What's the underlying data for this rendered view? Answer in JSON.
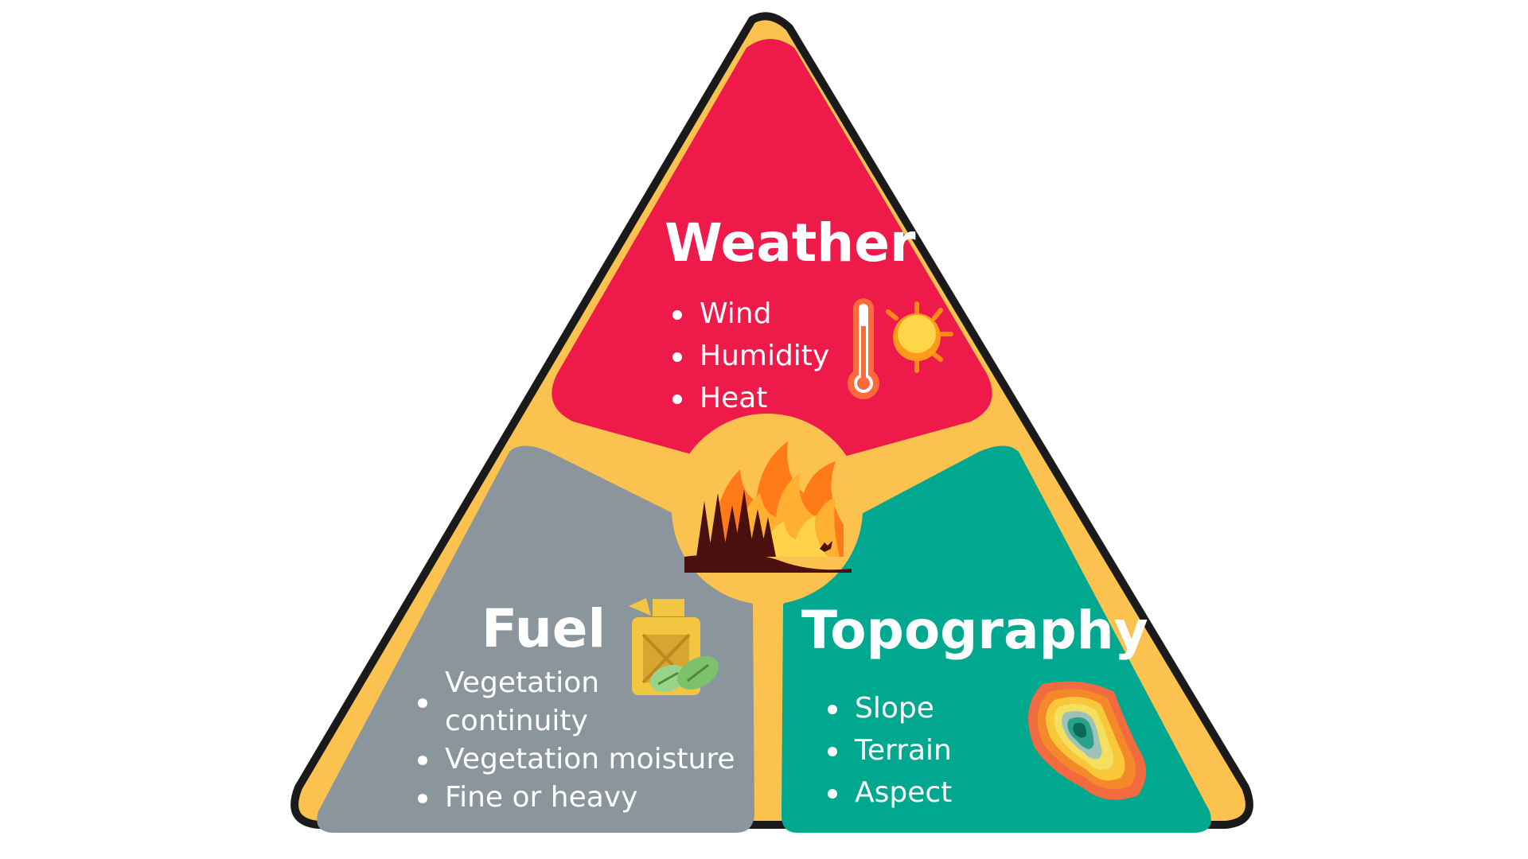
{
  "diagram": {
    "colors": {
      "outline": "#1a1a1a",
      "frame": "#fcc250",
      "weather": "#ee1a4a",
      "fuel": "#8a969c",
      "topography": "#00a890",
      "text": "#ffffff"
    },
    "sections": {
      "weather": {
        "title": "Weather",
        "items": [
          "Wind",
          "Humidity",
          "Heat"
        ],
        "icon": "thermometer-sun-icon"
      },
      "fuel": {
        "title": "Fuel",
        "items": [
          "Vegetation continuity",
          "Vegetation moisture",
          "Fine or heavy"
        ],
        "icon": "fuel-can-leaves-icon"
      },
      "topography": {
        "title": "Topography",
        "items": [
          "Slope",
          "Terrain",
          "Aspect"
        ],
        "icon": "contour-map-icon"
      }
    },
    "center_icon": "forest-fire-icon"
  }
}
